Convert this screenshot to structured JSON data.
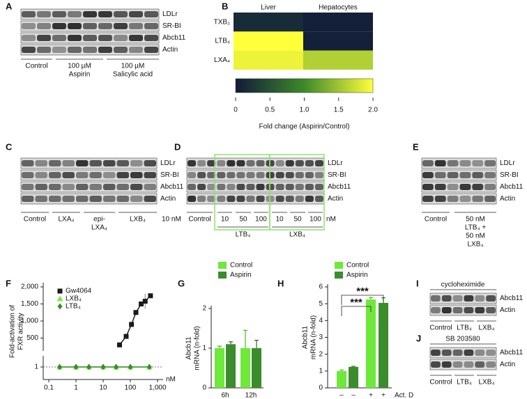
{
  "panel_labels": [
    "A",
    "B",
    "C",
    "D",
    "E",
    "F",
    "G",
    "H",
    "I",
    "J"
  ],
  "blot_A": {
    "rows": [
      "LDLr",
      "SR-BI",
      "Abcb11",
      "Actin"
    ],
    "groups": [
      [
        "Control"
      ],
      [
        "100 µM",
        "Aspirin"
      ],
      [
        "100 µM",
        "Salicylic acid"
      ]
    ]
  },
  "blot_C": {
    "rows": [
      "LDLr",
      "SR-BI",
      "Abcb11",
      "Actin"
    ],
    "groups": [
      [
        "Control"
      ],
      [
        "LXA₄"
      ],
      [
        "epi-",
        "LXA₄"
      ],
      [
        "LXB₄"
      ]
    ],
    "unit": "10 nM"
  },
  "blot_D": {
    "rows": [
      "LDLr",
      "SR-BI",
      "Abcb11",
      "Actin"
    ],
    "lanes": [
      "Control",
      "10",
      "50",
      "100",
      "10",
      "50",
      "100"
    ],
    "unit": "nM",
    "treatments": [
      "LTB₄",
      "LXB₄"
    ]
  },
  "blot_E": {
    "rows": [
      "LDLr",
      "SR-BI",
      "Abcb11",
      "Actin"
    ],
    "groups": [
      [
        "Control"
      ],
      [
        "50 nM",
        "LTB₄ +",
        "50 nM",
        "LXB₄"
      ]
    ]
  },
  "blot_I": {
    "treatment": "cycloheximide",
    "rows": [
      "Abcb11",
      "Actin"
    ],
    "groups": [
      [
        "Control"
      ],
      [
        "LTB₄"
      ],
      [
        "LXB₄"
      ]
    ]
  },
  "blot_J": {
    "treatment": "SB 203580",
    "rows": [
      "Abcb11",
      "Actin"
    ],
    "groups": [
      [
        "Control"
      ],
      [
        "LTB₄"
      ],
      [
        "LXB₄"
      ]
    ]
  },
  "chart_data": [
    {
      "type": "heatmap",
      "columns": [
        "Liver",
        "Hepatocytes"
      ],
      "rows": [
        "TXB₂",
        "LTB₄",
        "LXA₄"
      ],
      "values": [
        [
          0.15,
          0.05
        ],
        [
          2.0,
          0.05
        ],
        [
          1.9,
          1.6
        ]
      ],
      "colorscale": [
        "#121a3a",
        "#3d8a2a",
        "#ffff3a"
      ],
      "clim": [
        0,
        2
      ],
      "ticks": [
        0,
        0.5,
        {
          "value": 1,
          "label": "1.0"
        },
        1.5,
        {
          "value": 2,
          "label": "2.0"
        }
      ],
      "xlabel": "Fold change (Aspirin/Control)"
    },
    {
      "type": "line",
      "ylabel": [
        "Fold-activation of",
        "FXR activity"
      ],
      "xscale": "log",
      "xlim": [
        0.1,
        1000
      ],
      "xticks": [
        0.1,
        1,
        10,
        100,
        {
          "value": 1000,
          "label": "1,000"
        }
      ],
      "xunit": "nM",
      "ylim": [
        0,
        2000
      ],
      "yticks": [
        500,
        {
          "value": 1000,
          "label": "1,000"
        },
        {
          "value": 1500,
          "label": "1,500"
        },
        {
          "value": 2000,
          "label": "2,000"
        }
      ],
      "ylim_low": [
        0,
        2
      ],
      "yticks_low": [
        1
      ],
      "reference_line": 1,
      "series": [
        {
          "name": "Gw4064",
          "color": "#1a1a1a",
          "marker": "square",
          "x": [
            40,
            70,
            110,
            160,
            250,
            350,
            550
          ],
          "values": [
            300,
            550,
            900,
            1250,
            1500,
            1580,
            1740
          ],
          "errors": [
            null,
            null,
            null,
            null,
            null,
            220,
            null
          ]
        },
        {
          "name": "LXB₄",
          "color": "#7ee84a",
          "marker": "triangle",
          "axis": "low",
          "x": [
            0.25,
            1,
            3,
            10,
            30,
            100,
            500
          ],
          "values": [
            1,
            1,
            1,
            1,
            1,
            1,
            1
          ]
        },
        {
          "name": "LTB₄",
          "color": "#3a8c2c",
          "marker": "diamond",
          "axis": "low",
          "x": [
            0.25,
            1,
            3,
            10,
            30,
            100,
            500
          ],
          "values": [
            1,
            1,
            1,
            1,
            1,
            1,
            1
          ]
        }
      ]
    },
    {
      "type": "bar",
      "ylabel": [
        "Abcb11",
        "mRNA (n-fold)"
      ],
      "categories": [
        "6h",
        "12h"
      ],
      "ylim": [
        0,
        2
      ],
      "yticks": [
        0,
        1,
        2
      ],
      "series": [
        {
          "name": "Control",
          "color": "#6ee83a",
          "values": [
            1.0,
            1.0
          ],
          "errors": [
            0.05,
            0.45
          ]
        },
        {
          "name": "Aspirin",
          "color": "#3a8c2c",
          "values": [
            1.1,
            1.0
          ],
          "errors": [
            0.06,
            0.2
          ]
        }
      ]
    },
    {
      "type": "bar",
      "ylabel": [
        "Abcb11",
        "mRNA (n-fold)"
      ],
      "categories": [
        "–",
        "–",
        "+",
        "+"
      ],
      "xlabel": "Act. D",
      "ylim": [
        0,
        6
      ],
      "yticks": [
        0,
        1,
        2,
        3,
        4,
        5,
        6
      ],
      "series": [
        {
          "name": "Control",
          "color": "#6ee83a",
          "values": [
            1.0,
            null,
            5.25,
            null
          ],
          "errors": [
            0.06,
            null,
            0.12,
            null
          ]
        },
        {
          "name": "Aspirin",
          "color": "#3a8c2c",
          "values": [
            null,
            1.25,
            null,
            5.05
          ],
          "errors": [
            null,
            0.03,
            null,
            0.3
          ]
        }
      ],
      "annotations": [
        "***",
        "***"
      ]
    }
  ]
}
